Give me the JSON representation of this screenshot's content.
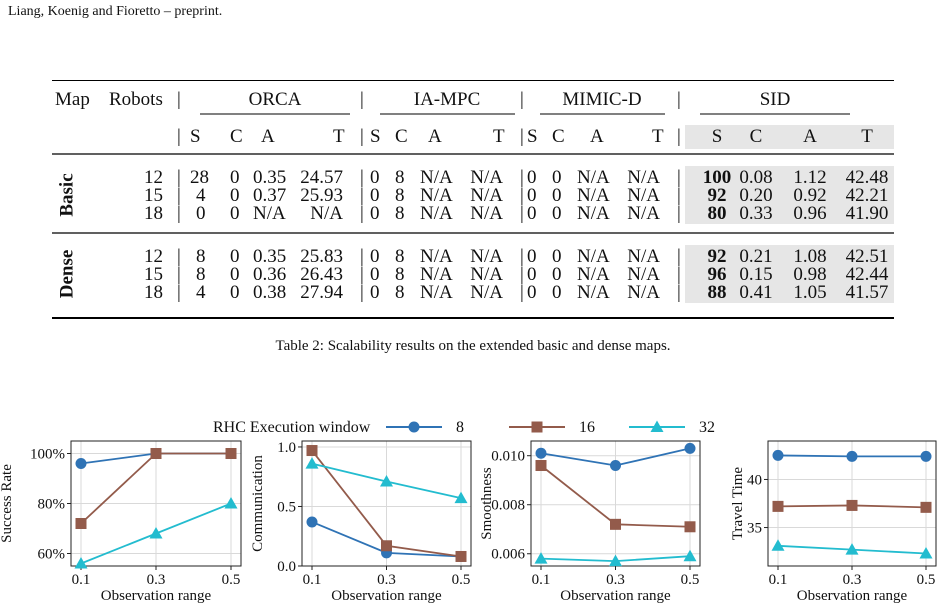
{
  "header": "Liang, Koenig and Fioretto – preprint.",
  "table": {
    "col_map": "Map",
    "col_robots": "Robots",
    "groups": [
      "ORCA",
      "IA-MPC",
      "MIMIC-D",
      "SID"
    ],
    "sub_headers": [
      "S",
      "C",
      "A",
      "T"
    ],
    "sections": [
      {
        "name": "Basic",
        "rows": [
          {
            "robots": "12",
            "cells": [
              [
                "28",
                "0",
                "0.35",
                "24.57"
              ],
              [
                "0",
                "8",
                "N/A",
                "N/A"
              ],
              [
                "0",
                "0",
                "N/A",
                "N/A"
              ],
              [
                "100",
                "0.08",
                "1.12",
                "42.48"
              ]
            ]
          },
          {
            "robots": "15",
            "cells": [
              [
                "4",
                "0",
                "0.37",
                "25.93"
              ],
              [
                "0",
                "8",
                "N/A",
                "N/A"
              ],
              [
                "0",
                "0",
                "N/A",
                "N/A"
              ],
              [
                "92",
                "0.20",
                "0.92",
                "42.21"
              ]
            ]
          },
          {
            "robots": "18",
            "cells": [
              [
                "0",
                "0",
                "N/A",
                "N/A"
              ],
              [
                "0",
                "8",
                "N/A",
                "N/A"
              ],
              [
                "0",
                "0",
                "N/A",
                "N/A"
              ],
              [
                "80",
                "0.33",
                "0.96",
                "41.90"
              ]
            ]
          }
        ]
      },
      {
        "name": "Dense",
        "rows": [
          {
            "robots": "12",
            "cells": [
              [
                "8",
                "0",
                "0.35",
                "25.83"
              ],
              [
                "0",
                "8",
                "N/A",
                "N/A"
              ],
              [
                "0",
                "0",
                "N/A",
                "N/A"
              ],
              [
                "92",
                "0.21",
                "1.08",
                "42.51"
              ]
            ]
          },
          {
            "robots": "15",
            "cells": [
              [
                "8",
                "0",
                "0.36",
                "26.43"
              ],
              [
                "0",
                "8",
                "N/A",
                "N/A"
              ],
              [
                "0",
                "0",
                "N/A",
                "N/A"
              ],
              [
                "96",
                "0.15",
                "0.98",
                "42.44"
              ]
            ]
          },
          {
            "robots": "18",
            "cells": [
              [
                "4",
                "0",
                "0.38",
                "27.94"
              ],
              [
                "0",
                "8",
                "N/A",
                "N/A"
              ],
              [
                "0",
                "0",
                "N/A",
                "N/A"
              ],
              [
                "88",
                "0.41",
                "1.05",
                "41.57"
              ]
            ]
          }
        ]
      }
    ]
  },
  "caption": "Table 2: Scalability results on the extended basic and dense maps.",
  "figure": {
    "legend_title": "RHC Execution window",
    "colors": {
      "8": "#2f73b5",
      "16": "#935b4b",
      "32": "#23bccf"
    },
    "chart_data": [
      {
        "type": "line",
        "ylabel": "Success Rate",
        "xlabel": "Observation range",
        "x": [
          "0.1",
          "0.3",
          "0.5"
        ],
        "ylim": [
          55,
          105
        ],
        "yticks": [
          "60%",
          "80%",
          "100%"
        ],
        "series": [
          {
            "name": "8",
            "values": [
              96,
              100,
              100
            ]
          },
          {
            "name": "16",
            "values": [
              72,
              100,
              100
            ]
          },
          {
            "name": "32",
            "values": [
              56,
              68,
              80
            ]
          }
        ]
      },
      {
        "type": "line",
        "ylabel": "Communication",
        "xlabel": "Observation range",
        "x": [
          "0.1",
          "0.3",
          "0.5"
        ],
        "ylim": [
          0,
          1.05
        ],
        "yticks": [
          "0.0",
          "0.5",
          "1.0"
        ],
        "series": [
          {
            "name": "8",
            "values": [
              0.37,
              0.11,
              0.08
            ]
          },
          {
            "name": "16",
            "values": [
              0.97,
              0.17,
              0.08
            ]
          },
          {
            "name": "32",
            "values": [
              0.86,
              0.71,
              0.57
            ]
          }
        ]
      },
      {
        "type": "line",
        "ylabel": "Smoothness",
        "xlabel": "Observation range",
        "x": [
          "0.1",
          "0.3",
          "0.5"
        ],
        "ylim": [
          0.0055,
          0.0106
        ],
        "yticks": [
          "0.006",
          "0.008",
          "0.010"
        ],
        "series": [
          {
            "name": "8",
            "values": [
              0.0101,
              0.0096,
              0.0103
            ]
          },
          {
            "name": "16",
            "values": [
              0.0096,
              0.0072,
              0.0071
            ]
          },
          {
            "name": "32",
            "values": [
              0.0058,
              0.0057,
              0.0059
            ]
          }
        ]
      },
      {
        "type": "line",
        "ylabel": "Travel Time",
        "xlabel": "Observation range",
        "x": [
          "0.1",
          "0.3",
          "0.5"
        ],
        "ylim": [
          31,
          44
        ],
        "yticks": [
          "35",
          "40"
        ],
        "series": [
          {
            "name": "8",
            "values": [
              42.5,
              42.4,
              42.4
            ]
          },
          {
            "name": "16",
            "values": [
              37.2,
              37.3,
              37.1
            ]
          },
          {
            "name": "32",
            "values": [
              33.1,
              32.7,
              32.3
            ]
          }
        ]
      }
    ]
  }
}
